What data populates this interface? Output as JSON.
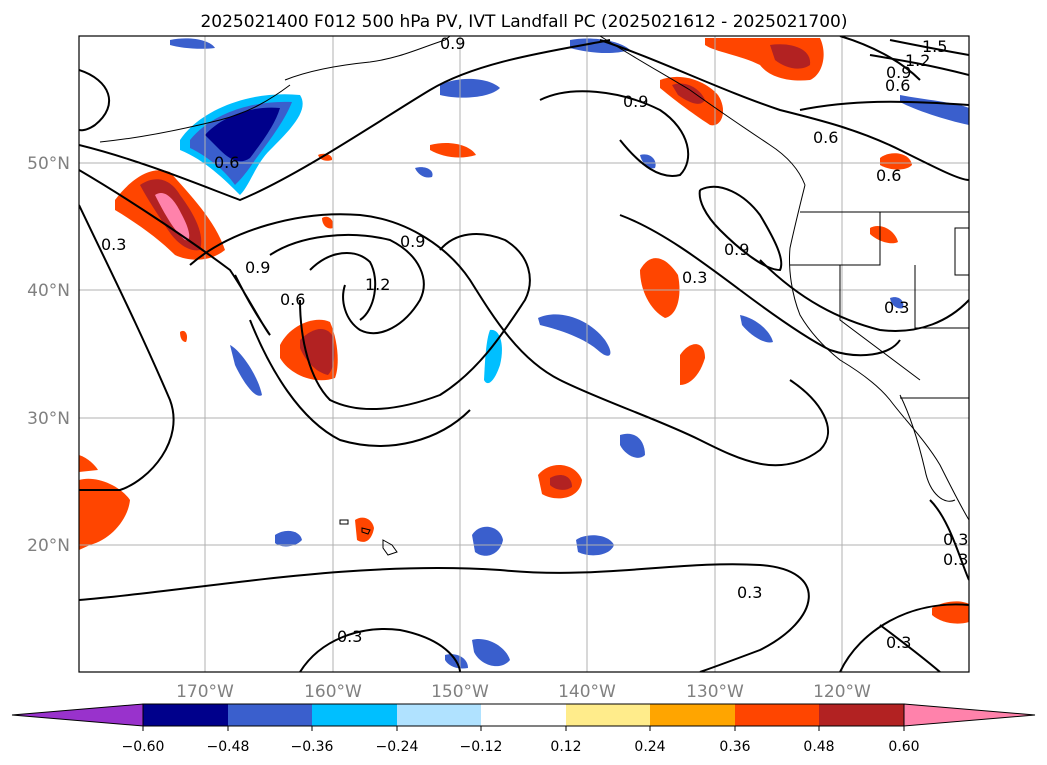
{
  "title": "2025021400 F012 500 hPa PV, IVT Landfall PC (2025021612 - 2025021700)",
  "lon_labels": [
    "170°W",
    "160°W",
    "150°W",
    "140°W",
    "130°W",
    "120°W"
  ],
  "lat_labels": [
    "50°N",
    "40°N",
    "30°N",
    "20°N"
  ],
  "colorbar": {
    "tick_labels": [
      "−0.60",
      "−0.48",
      "−0.36",
      "−0.24",
      "−0.12",
      "0.12",
      "0.24",
      "0.36",
      "0.48",
      "0.60"
    ],
    "colors": [
      "#9932cc",
      "#00008b",
      "#3a5fcd",
      "#00bfff",
      "#b0e2ff",
      "#ffffff",
      "#ffec8b",
      "#ffa500",
      "#ff4500",
      "#b22222",
      "#ff82ab"
    ]
  },
  "contour_labels": [
    "0.9",
    "1.5",
    "1.2",
    "0.9",
    "0.6",
    "0.9",
    "0.6",
    "0.6",
    "0.6",
    "0.3",
    "0.9",
    "1.2",
    "0.9",
    "0.6",
    "0.3",
    "0.9",
    "0.3",
    "0.3",
    "0.3",
    "0.3",
    "0.3",
    "0.3"
  ],
  "map_extent": {
    "lon_min": -180,
    "lon_max": -110,
    "lat_min": 10,
    "lat_max": 60
  }
}
